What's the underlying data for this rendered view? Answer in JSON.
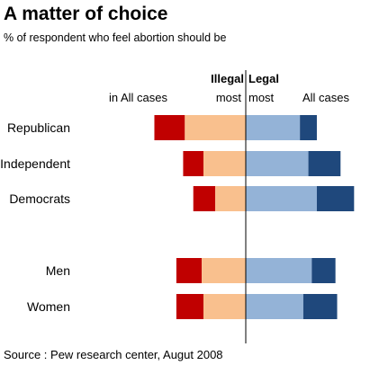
{
  "title": "A matter of choice",
  "subtitle": "% of respondent who feel abortion should be",
  "source": "Source : Pew research center, Augut 2008",
  "header": {
    "illegal": "Illegal",
    "legal": "Legal",
    "illegal_all": "in All cases",
    "illegal_most": "most",
    "legal_most": "most",
    "legal_all": "All cases"
  },
  "colors": {
    "illegal_all": "#c00000",
    "illegal_most": "#f9c08e",
    "legal_most": "#94b3d7",
    "legal_all": "#1f487c"
  },
  "chart_data": {
    "type": "bar",
    "orientation": "horizontal-diverging",
    "categories": [
      "Republican",
      "Independent",
      "Democrats",
      "Men",
      "Women"
    ],
    "series": [
      {
        "name": "in All cases",
        "side": "illegal",
        "values": [
          18,
          12,
          13,
          15,
          16
        ]
      },
      {
        "name": "most",
        "side": "illegal",
        "values": [
          36,
          25,
          18,
          26,
          25
        ]
      },
      {
        "name": "most",
        "side": "legal",
        "values": [
          32,
          37,
          42,
          39,
          34
        ]
      },
      {
        "name": "All cases",
        "side": "legal",
        "values": [
          10,
          19,
          22,
          14,
          20
        ]
      }
    ],
    "xlim": [
      -55,
      60
    ]
  }
}
